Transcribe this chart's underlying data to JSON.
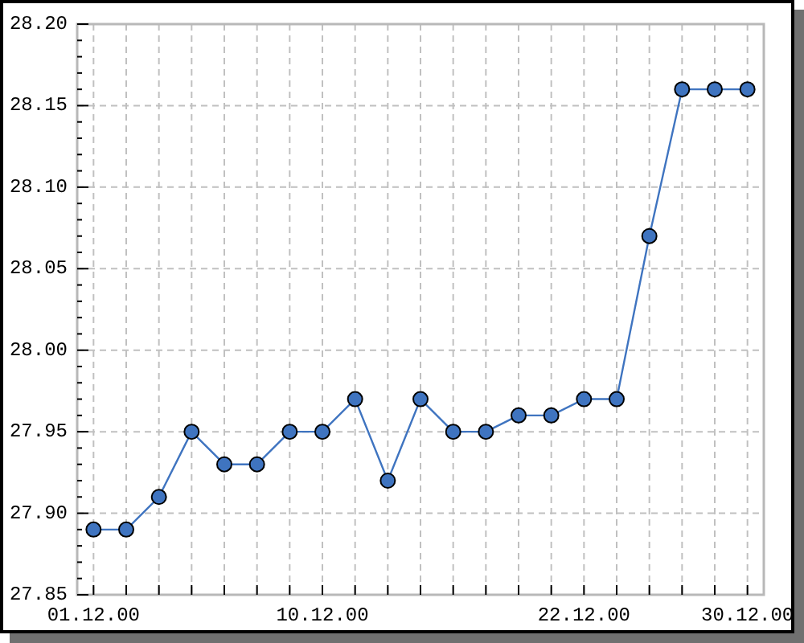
{
  "chart_data": {
    "type": "line",
    "categories": [
      "01.12.00",
      null,
      null,
      null,
      null,
      null,
      null,
      "10.12.00",
      null,
      null,
      null,
      null,
      null,
      null,
      null,
      "22.12.00",
      null,
      null,
      null,
      null,
      "30.12.00"
    ],
    "values": [
      27.89,
      27.89,
      27.91,
      27.95,
      27.93,
      27.93,
      27.95,
      27.95,
      27.97,
      27.92,
      27.97,
      27.95,
      27.95,
      27.96,
      27.96,
      27.97,
      27.97,
      28.07,
      28.16,
      28.16,
      28.16
    ],
    "color": "#3f74c0",
    "marker": "circle",
    "grid": true,
    "ylim": [
      27.85,
      28.2
    ],
    "yticks": [
      27.85,
      {
        "value": 27.86,
        "label": null
      },
      {
        "value": 27.87,
        "label": null
      },
      {
        "value": 27.88,
        "label": null
      },
      {
        "value": 27.89,
        "label": null
      },
      {
        "value": 27.9,
        "label": "27.90"
      },
      {
        "value": 27.91,
        "label": null
      },
      {
        "value": 27.92,
        "label": null
      },
      {
        "value": 27.93,
        "label": null
      },
      {
        "value": 27.94,
        "label": null
      },
      27.95,
      {
        "value": 27.96,
        "label": null
      },
      {
        "value": 27.97,
        "label": null
      },
      {
        "value": 27.98,
        "label": null
      },
      {
        "value": 27.99,
        "label": null
      },
      {
        "value": 28.0,
        "label": "28.00"
      },
      {
        "value": 28.01,
        "label": null
      },
      {
        "value": 28.02,
        "label": null
      },
      {
        "value": 28.03,
        "label": null
      },
      {
        "value": 28.04,
        "label": null
      },
      28.05,
      {
        "value": 28.06,
        "label": null
      },
      {
        "value": 28.07,
        "label": null
      },
      {
        "value": 28.08,
        "label": null
      },
      {
        "value": 28.09,
        "label": null
      },
      {
        "value": 28.1,
        "label": "28.10"
      },
      {
        "value": 28.11,
        "label": null
      },
      {
        "value": 28.12,
        "label": null
      },
      {
        "value": 28.13,
        "label": null
      },
      {
        "value": 28.14,
        "label": null
      },
      28.15,
      {
        "value": 28.16,
        "label": null
      },
      {
        "value": 28.17,
        "label": null
      },
      {
        "value": 28.18,
        "label": null
      },
      {
        "value": 28.19,
        "label": null
      },
      {
        "value": 28.2,
        "label": "28.20"
      }
    ]
  }
}
